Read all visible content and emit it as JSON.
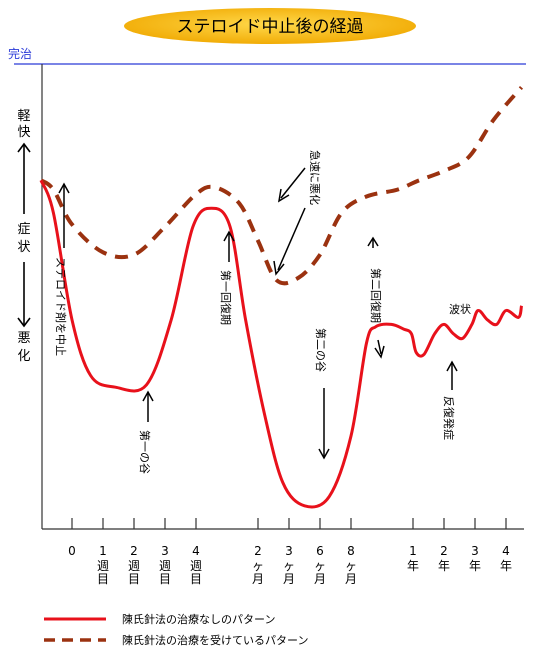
{
  "chart_data": {
    "type": "line",
    "title": "ステロイド中止後の経過",
    "y_top_label": "完治",
    "y_axis_text": {
      "top": [
        "軽",
        "快"
      ],
      "middle": [
        "症",
        "状"
      ],
      "bottom": [
        "悪",
        "化"
      ]
    },
    "x_ticks": [
      {
        "line1": "0",
        "line2": "",
        "x": 0
      },
      {
        "line1": "1",
        "line2": "週目",
        "x": 1
      },
      {
        "line1": "2",
        "line2": "週目",
        "x": 2
      },
      {
        "line1": "3",
        "line2": "週目",
        "x": 3
      },
      {
        "line1": "4",
        "line2": "週目",
        "x": 4
      },
      {
        "line1": "2",
        "line2": "ヶ月",
        "x": 6
      },
      {
        "line1": "3",
        "line2": "ヶ月",
        "x": 7
      },
      {
        "line1": "6",
        "line2": "ヶ月",
        "x": 8
      },
      {
        "line1": "8",
        "line2": "ヶ月",
        "x": 9
      },
      {
        "line1": "1",
        "line2": "年",
        "x": 11
      },
      {
        "line1": "2",
        "line2": "年",
        "x": 12
      },
      {
        "line1": "3",
        "line2": "年",
        "x": 13
      },
      {
        "line1": "4",
        "line2": "年",
        "x": 14
      }
    ],
    "ylim": [
      0,
      100
    ],
    "series": [
      {
        "name": "陳氏針法の治療なしのパターン",
        "color": "#e8111b",
        "style": "solid",
        "points": [
          [
            -1,
            75
          ],
          [
            -0.6,
            68
          ],
          [
            0,
            45
          ],
          [
            0.6,
            33
          ],
          [
            1.4,
            30.5
          ],
          [
            2.4,
            31
          ],
          [
            3.2,
            45
          ],
          [
            3.9,
            65
          ],
          [
            4.5,
            69
          ],
          [
            5.1,
            65
          ],
          [
            5.6,
            45
          ],
          [
            6.2,
            25
          ],
          [
            6.8,
            10
          ],
          [
            7.5,
            5
          ],
          [
            8.3,
            7
          ],
          [
            9,
            20
          ],
          [
            9.5,
            40
          ],
          [
            9.8,
            43.5
          ],
          [
            10.3,
            44
          ],
          [
            10.7,
            43
          ],
          [
            10.95,
            42
          ],
          [
            11.1,
            38
          ],
          [
            11.35,
            37.5
          ],
          [
            11.7,
            42
          ],
          [
            12,
            44
          ],
          [
            12.3,
            42
          ],
          [
            12.6,
            41
          ],
          [
            12.9,
            44
          ],
          [
            13.1,
            47
          ],
          [
            13.4,
            45
          ],
          [
            13.7,
            44
          ],
          [
            14,
            47
          ],
          [
            14.4,
            45.5
          ],
          [
            14.5,
            48
          ]
        ]
      },
      {
        "name": "陳氏針法の治療を受けているパターン",
        "color": "#9b3210",
        "style": "dashed",
        "points": [
          [
            -1,
            75
          ],
          [
            -0.6,
            73
          ],
          [
            0,
            65.5
          ],
          [
            1,
            59.5
          ],
          [
            2,
            59
          ],
          [
            3,
            65
          ],
          [
            4,
            72
          ],
          [
            4.6,
            73.5
          ],
          [
            5.4,
            70
          ],
          [
            6,
            62
          ],
          [
            6.6,
            53.5
          ],
          [
            7.3,
            54
          ],
          [
            8,
            59
          ],
          [
            8.7,
            68
          ],
          [
            9.5,
            71.5
          ],
          [
            10.5,
            73
          ],
          [
            11.2,
            75
          ],
          [
            12,
            77
          ],
          [
            12.8,
            80
          ],
          [
            13.6,
            88
          ],
          [
            14.5,
            95
          ]
        ]
      }
    ],
    "annotations": [
      {
        "vertical": "ステロイド剤を中止"
      },
      {
        "vertical": "第一の谷"
      },
      {
        "vertical": "第一回復期"
      },
      {
        "vertical": "急速に悪化"
      },
      {
        "vertical": "第二の谷"
      },
      {
        "vertical": "第二回復期"
      },
      {
        "vertical": "反復発症"
      },
      {
        "text": "波状"
      }
    ],
    "legend": [
      {
        "label": "陳氏針法の治療なしのパターン",
        "color": "#e8111b",
        "style": "solid"
      },
      {
        "label": "陳氏針法の治療を受けているパターン",
        "color": "#9b3210",
        "style": "dashed"
      }
    ],
    "colors": {
      "title_bg": "#f5b800",
      "cure_line": "#2b3bd8",
      "cure_label": "#2b3bd8",
      "axis": "#333333"
    }
  }
}
